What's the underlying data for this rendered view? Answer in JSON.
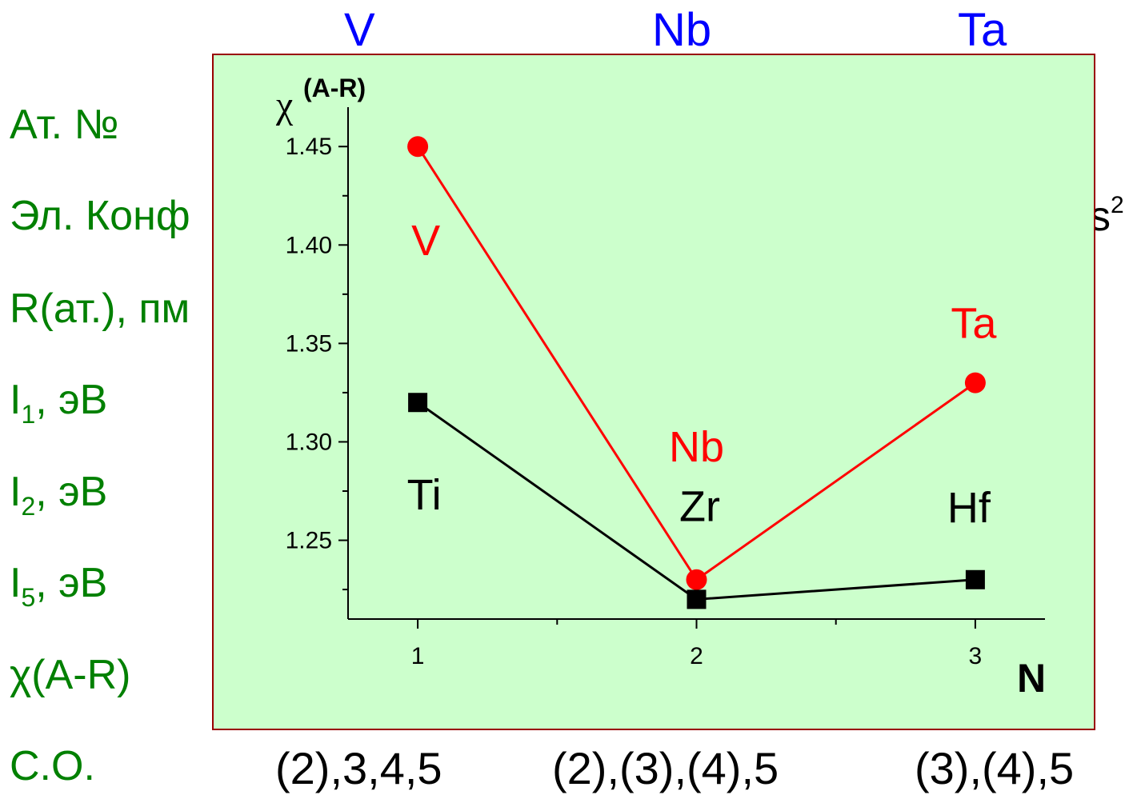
{
  "headers": {
    "col1": "V",
    "col2": "Nb",
    "col3": "Ta",
    "color": "#0000ff"
  },
  "row_labels": {
    "at_no": "Ат. №",
    "el_conf": "Эл. Конф",
    "radius": "R(ат.), пм",
    "i1_base": "I",
    "i1_sub": "1",
    "i1_unit": ", эВ",
    "i2_base": "I",
    "i2_sub": "2",
    "i2_unit": ", эВ",
    "i5_base": "I",
    "i5_sub": "5",
    "i5_unit": ", эВ",
    "chi": "χ(A-R)",
    "so": "С.О.",
    "color": "#008000"
  },
  "background_fragment": {
    "el_conf_tail_base": "s",
    "el_conf_tail_sup": "2"
  },
  "oxidation_states": [
    "(2),3,4,5",
    "(2),(3),(4),5",
    "(3),(4),5"
  ],
  "panel": {
    "background": "#ccffcc",
    "border": "#990000"
  },
  "chart_data": {
    "type": "line",
    "ylabel_base": "χ",
    "ylabel_sup": "(A-R)",
    "xlabel": "N",
    "x": [
      1,
      2,
      3
    ],
    "xticks": [
      "1",
      "2",
      "3"
    ],
    "yticks": [
      "1.25",
      "1.30",
      "1.35",
      "1.40",
      "1.45"
    ],
    "xlim": [
      0.75,
      3.25
    ],
    "ylim": [
      1.21,
      1.47
    ],
    "series": [
      {
        "marker": "circle",
        "color": "#ff0000",
        "values": [
          1.45,
          1.23,
          1.33
        ],
        "labels": [
          "V",
          "Nb",
          "Ta"
        ]
      },
      {
        "marker": "square",
        "color": "#000000",
        "values": [
          1.32,
          1.22,
          1.23
        ],
        "labels": [
          "Ti",
          "Zr",
          "Hf"
        ]
      }
    ]
  }
}
